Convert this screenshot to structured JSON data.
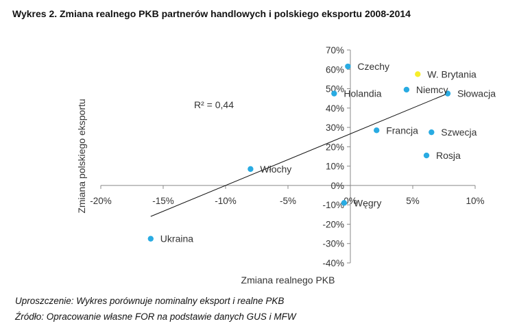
{
  "title": "Wykres 2. Zmiana realnego PKB partnerów handlowych i polskiego eksportu 2008-2014",
  "notes": {
    "line1": "Uproszczenie: Wykres porównuje nominalny eksport i realne PKB",
    "line2": "Źródło: Opracowanie własne FOR na podstawie danych GUS i MFW"
  },
  "colors": {
    "point": "#29abe2",
    "highlight": "#f7ee2a",
    "axis": "#888888",
    "trend": "#111111"
  },
  "chart_data": {
    "type": "scatter",
    "xlabel": "Zmiana realnego PKB",
    "ylabel": "Zmiana polskiego eksportu",
    "xlim": [
      -20,
      10
    ],
    "ylim": [
      -40,
      70
    ],
    "x_ticks": [
      "-20%",
      "-15%",
      "-10%",
      "-5%",
      "0%",
      "5%",
      "10%"
    ],
    "y_ticks": [
      "70%",
      "60%",
      "50%",
      "40%",
      "30%",
      "20%",
      "10%",
      "0%",
      "-10%",
      "-20%",
      "-30%",
      "-40%"
    ],
    "annotation": "R² = 0,44",
    "points": [
      {
        "label": "Czechy",
        "x": -0.2,
        "y": 61.5,
        "color": "#29abe2"
      },
      {
        "label": "W. Brytania",
        "x": 5.4,
        "y": 57.5,
        "color": "#f7ee2a"
      },
      {
        "label": "Niemcy",
        "x": 4.5,
        "y": 49.5,
        "color": "#29abe2"
      },
      {
        "label": "Holandia",
        "x": -1.3,
        "y": 47.5,
        "color": "#29abe2"
      },
      {
        "label": "Słowacja",
        "x": 7.8,
        "y": 47.5,
        "color": "#29abe2"
      },
      {
        "label": "Francja",
        "x": 2.1,
        "y": 28.5,
        "color": "#29abe2"
      },
      {
        "label": "Szwecja",
        "x": 6.5,
        "y": 27.5,
        "color": "#29abe2"
      },
      {
        "label": "Rosja",
        "x": 6.1,
        "y": 15.5,
        "color": "#29abe2"
      },
      {
        "label": "Włochy",
        "x": -8.0,
        "y": 8.5,
        "color": "#29abe2"
      },
      {
        "label": "Węgry",
        "x": -0.5,
        "y": -9.0,
        "color": "#29abe2"
      },
      {
        "label": "Ukraina",
        "x": -16.0,
        "y": -27.5,
        "color": "#29abe2"
      }
    ],
    "trendline": {
      "x1": -16,
      "y1": -16,
      "x2": 7.8,
      "y2": 47.5
    },
    "grid": false,
    "legend": "none"
  }
}
